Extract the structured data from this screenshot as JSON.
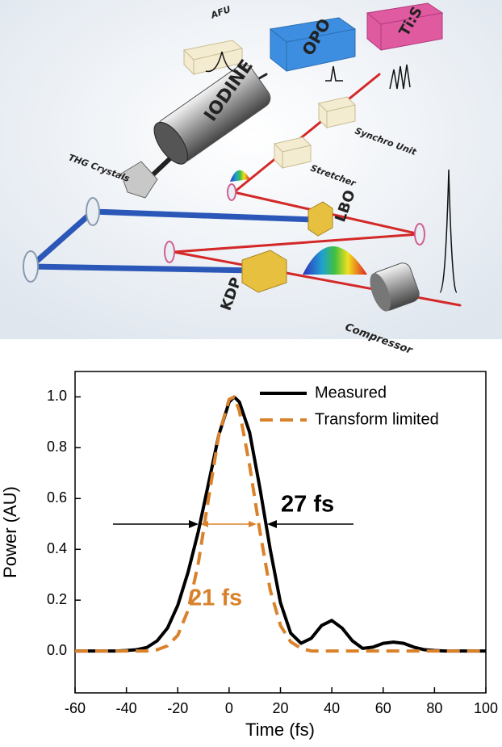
{
  "diagram": {
    "labels": {
      "afu": "AFU",
      "opo": "OPO",
      "tis": "Ti:S",
      "iodine": "IODINE",
      "synchro": "Synchro Unit",
      "stretcher": "Stretcher",
      "thg": "THG Crystals",
      "lbo": "LBO",
      "kdp": "KDP",
      "compressor": "Compressor"
    }
  },
  "chart_data": {
    "type": "line",
    "x": [
      -60,
      -56,
      -52,
      -48,
      -44,
      -40,
      -36,
      -32,
      -28,
      -24,
      -20,
      -16,
      -12,
      -8,
      -4,
      0,
      2,
      4,
      8,
      12,
      16,
      20,
      24,
      28,
      32,
      36,
      40,
      44,
      48,
      52,
      56,
      60,
      64,
      68,
      72,
      76,
      80,
      84,
      88,
      92,
      96,
      100
    ],
    "series": [
      {
        "name": "Measured",
        "color": "#000000",
        "dash": false,
        "values": [
          0,
          0,
          0,
          0,
          0,
          0.002,
          0.005,
          0.014,
          0.04,
          0.09,
          0.18,
          0.31,
          0.47,
          0.66,
          0.85,
          0.98,
          1.0,
          0.98,
          0.86,
          0.64,
          0.4,
          0.19,
          0.07,
          0.03,
          0.05,
          0.1,
          0.12,
          0.09,
          0.04,
          0.01,
          0.015,
          0.03,
          0.035,
          0.03,
          0.015,
          0.005,
          0.002,
          0,
          0,
          0,
          0,
          0
        ]
      },
      {
        "name": "Transform limited",
        "color": "#d9822b",
        "dash": true,
        "values": [
          0,
          0,
          0,
          0,
          0,
          0,
          0,
          0,
          0.005,
          0.02,
          0.062,
          0.16,
          0.345,
          0.6,
          0.85,
          0.99,
          1.0,
          0.945,
          0.73,
          0.47,
          0.24,
          0.1,
          0.036,
          0.01,
          0,
          0,
          0,
          0,
          0,
          0,
          0,
          0,
          0,
          0,
          0,
          0,
          0,
          0,
          0,
          0,
          0,
          0
        ]
      }
    ],
    "xlabel": "Time (fs)",
    "ylabel": "Power (AU)",
    "xlim": [
      -60,
      100
    ],
    "ylim": [
      -0.165,
      1.1
    ],
    "xticks": [
      -60,
      -40,
      -20,
      0,
      20,
      40,
      60,
      80,
      100
    ],
    "yticks": [
      {
        "value": 0,
        "label": "0.0"
      },
      0.2,
      0.4,
      0.6,
      0.8,
      {
        "value": 1,
        "label": "1.0"
      }
    ],
    "legend": "upper right",
    "annotations": [
      {
        "text": "27 fs",
        "color": "#000000"
      },
      {
        "text": "21 fs",
        "color": "#d9822b"
      }
    ]
  }
}
